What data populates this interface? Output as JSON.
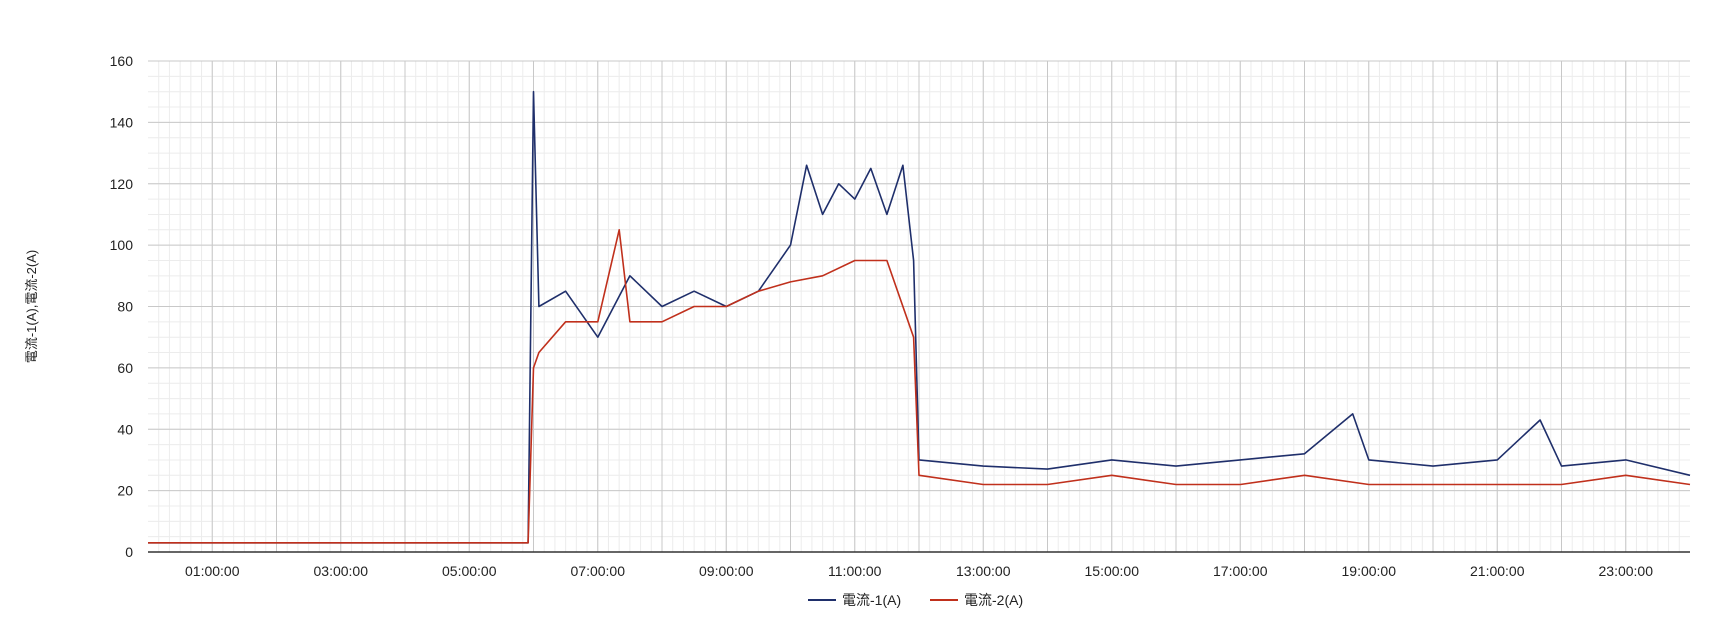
{
  "chart_data": {
    "type": "line",
    "title": "",
    "xlabel": "",
    "ylabel": "電流-1(A),電流-2(A)",
    "ylim": [
      0,
      160
    ],
    "y_ticks": [
      "0",
      "20",
      "40",
      "60",
      "80",
      "100",
      "120",
      "140",
      "160"
    ],
    "xlim": [
      "00:00:00",
      "24:00:00"
    ],
    "x_ticks": [
      "01:00:00",
      "03:00:00",
      "05:00:00",
      "07:00:00",
      "09:00:00",
      "11:00:00",
      "13:00:00",
      "15:00:00",
      "17:00:00",
      "19:00:00",
      "21:00:00",
      "23:00:00"
    ],
    "grid": true,
    "legend_position": "bottom",
    "series": [
      {
        "name": "電流-1(A)",
        "color": "#1f2f6b",
        "x": [
          "00:00:00",
          "05:55:00",
          "06:00:00",
          "06:05:00",
          "06:30:00",
          "07:00:00",
          "07:30:00",
          "08:00:00",
          "08:30:00",
          "09:00:00",
          "09:30:00",
          "10:00:00",
          "10:15:00",
          "10:30:00",
          "10:45:00",
          "11:00:00",
          "11:15:00",
          "11:30:00",
          "11:45:00",
          "11:55:00",
          "12:00:00",
          "13:00:00",
          "14:00:00",
          "15:00:00",
          "16:00:00",
          "17:00:00",
          "18:00:00",
          "18:45:00",
          "19:00:00",
          "20:00:00",
          "21:00:00",
          "21:40:00",
          "22:00:00",
          "23:00:00",
          "24:00:00"
        ],
        "y": [
          3,
          3,
          150,
          80,
          85,
          70,
          90,
          80,
          85,
          80,
          85,
          100,
          126,
          110,
          120,
          115,
          125,
          110,
          126,
          95,
          30,
          28,
          27,
          30,
          28,
          30,
          32,
          45,
          30,
          28,
          30,
          43,
          28,
          30,
          25
        ]
      },
      {
        "name": "電流-2(A)",
        "color": "#c0301c",
        "x": [
          "00:00:00",
          "05:55:00",
          "06:00:00",
          "06:05:00",
          "06:30:00",
          "07:00:00",
          "07:20:00",
          "07:30:00",
          "08:00:00",
          "08:30:00",
          "09:00:00",
          "09:30:00",
          "10:00:00",
          "10:30:00",
          "11:00:00",
          "11:30:00",
          "11:55:00",
          "12:00:00",
          "13:00:00",
          "14:00:00",
          "15:00:00",
          "16:00:00",
          "17:00:00",
          "18:00:00",
          "19:00:00",
          "20:00:00",
          "21:00:00",
          "22:00:00",
          "23:00:00",
          "24:00:00"
        ],
        "y": [
          3,
          3,
          60,
          65,
          75,
          75,
          105,
          75,
          75,
          80,
          80,
          85,
          88,
          90,
          95,
          95,
          70,
          25,
          22,
          22,
          25,
          22,
          22,
          25,
          22,
          22,
          22,
          22,
          25,
          22
        ]
      }
    ]
  }
}
